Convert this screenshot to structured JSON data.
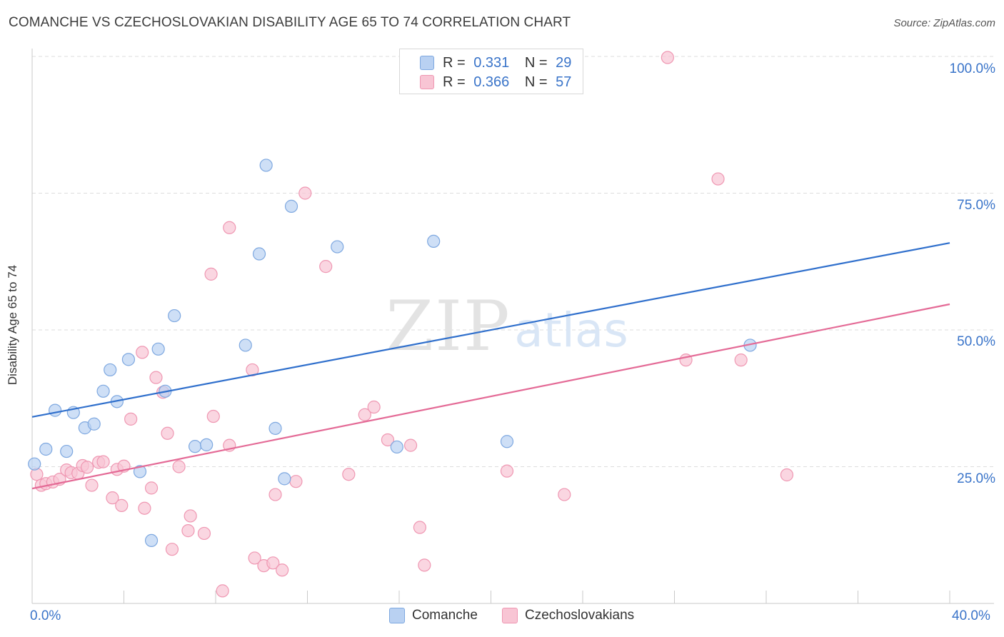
{
  "header": {
    "title": "COMANCHE VS CZECHOSLOVAKIAN DISABILITY AGE 65 TO 74 CORRELATION CHART",
    "source": "Source: ZipAtlas.com"
  },
  "watermark": {
    "zip": "ZIP",
    "atlas": "atlas"
  },
  "legend_top": {
    "rows": [
      {
        "r_label": "R =",
        "r_value": "0.331",
        "n_label": "N =",
        "n_value": "29"
      },
      {
        "r_label": "R =",
        "r_value": "0.366",
        "n_label": "N =",
        "n_value": "57"
      }
    ]
  },
  "legend_bottom": {
    "items": [
      "Comanche",
      "Czechoslovakians"
    ]
  },
  "axis_text": {
    "x_min": "0.0%",
    "x_max": "40.0%",
    "y_ticks": [
      "100.0%",
      "75.0%",
      "50.0%",
      "25.0%"
    ],
    "ylabel": "Disability Age 65 to 74"
  },
  "colors": {
    "comanche_fill": "#b9d1f2",
    "comanche_stroke": "#7ea8e0",
    "comanche_line": "#2f6fcc",
    "czech_fill": "#f8c5d4",
    "czech_stroke": "#ef97b2",
    "czech_line": "#e46a96",
    "tick_text": "#3a74c9",
    "grid": "#dddddd"
  },
  "chart_data": {
    "type": "scatter",
    "title": "COMANCHE VS CZECHOSLOVAKIAN DISABILITY AGE 65 TO 74 CORRELATION CHART",
    "xlabel": "",
    "ylabel": "Disability Age 65 to 74",
    "xlim": [
      0,
      40
    ],
    "ylim": [
      0,
      100
    ],
    "y_gridlines": [
      25,
      50,
      75,
      100
    ],
    "legend_position": "top-center",
    "series": [
      {
        "name": "Comanche",
        "r": 0.331,
        "n": 29,
        "trend": {
          "x": [
            0,
            40
          ],
          "y": [
            34.1,
            65.9
          ]
        },
        "points": [
          [
            0.1,
            25.5
          ],
          [
            0.6,
            28.2
          ],
          [
            1.0,
            35.3
          ],
          [
            1.5,
            27.8
          ],
          [
            1.8,
            34.9
          ],
          [
            2.3,
            32.1
          ],
          [
            2.7,
            32.8
          ],
          [
            3.1,
            38.8
          ],
          [
            3.4,
            42.7
          ],
          [
            3.7,
            36.9
          ],
          [
            4.2,
            44.6
          ],
          [
            4.7,
            24.1
          ],
          [
            5.2,
            11.5
          ],
          [
            5.5,
            46.5
          ],
          [
            5.8,
            38.8
          ],
          [
            6.2,
            52.6
          ],
          [
            7.1,
            28.7
          ],
          [
            7.6,
            29.0
          ],
          [
            9.3,
            47.2
          ],
          [
            9.9,
            63.9
          ],
          [
            10.2,
            80.1
          ],
          [
            10.6,
            32.0
          ],
          [
            11.0,
            22.8
          ],
          [
            11.3,
            72.6
          ],
          [
            13.3,
            65.2
          ],
          [
            15.9,
            28.6
          ],
          [
            17.5,
            66.2
          ],
          [
            20.7,
            29.6
          ],
          [
            31.3,
            47.2
          ]
        ]
      },
      {
        "name": "Czechoslovakians",
        "r": 0.366,
        "n": 57,
        "trend": {
          "x": [
            0,
            40
          ],
          "y": [
            21.0,
            54.7
          ]
        },
        "points": [
          [
            0.2,
            23.6
          ],
          [
            0.4,
            21.6
          ],
          [
            0.6,
            21.9
          ],
          [
            0.9,
            22.2
          ],
          [
            1.2,
            22.7
          ],
          [
            1.5,
            24.4
          ],
          [
            1.7,
            23.9
          ],
          [
            2.0,
            23.8
          ],
          [
            2.2,
            25.2
          ],
          [
            2.4,
            24.9
          ],
          [
            2.6,
            21.6
          ],
          [
            2.9,
            25.8
          ],
          [
            3.1,
            25.9
          ],
          [
            3.5,
            19.3
          ],
          [
            3.7,
            24.5
          ],
          [
            3.9,
            17.9
          ],
          [
            4.0,
            25.1
          ],
          [
            4.3,
            33.7
          ],
          [
            4.8,
            45.9
          ],
          [
            4.9,
            17.4
          ],
          [
            5.2,
            21.1
          ],
          [
            5.4,
            41.3
          ],
          [
            5.7,
            38.6
          ],
          [
            5.9,
            31.1
          ],
          [
            6.1,
            9.9
          ],
          [
            6.4,
            25.0
          ],
          [
            6.8,
            13.3
          ],
          [
            6.9,
            16.0
          ],
          [
            7.5,
            12.8
          ],
          [
            7.8,
            60.2
          ],
          [
            7.9,
            34.2
          ],
          [
            8.3,
            2.3
          ],
          [
            8.6,
            68.7
          ],
          [
            8.6,
            28.9
          ],
          [
            9.6,
            42.7
          ],
          [
            9.7,
            8.3
          ],
          [
            10.1,
            6.9
          ],
          [
            10.5,
            7.4
          ],
          [
            10.6,
            19.9
          ],
          [
            10.9,
            6.1
          ],
          [
            11.5,
            22.3
          ],
          [
            11.9,
            75.0
          ],
          [
            12.8,
            61.6
          ],
          [
            13.8,
            23.6
          ],
          [
            14.5,
            34.5
          ],
          [
            14.9,
            35.9
          ],
          [
            15.5,
            29.9
          ],
          [
            16.5,
            28.9
          ],
          [
            16.9,
            13.9
          ],
          [
            17.1,
            7.0
          ],
          [
            20.7,
            24.2
          ],
          [
            23.2,
            19.9
          ],
          [
            27.7,
            99.8
          ],
          [
            28.5,
            44.5
          ],
          [
            29.9,
            77.6
          ],
          [
            30.9,
            44.5
          ],
          [
            32.9,
            23.5
          ]
        ]
      }
    ]
  }
}
